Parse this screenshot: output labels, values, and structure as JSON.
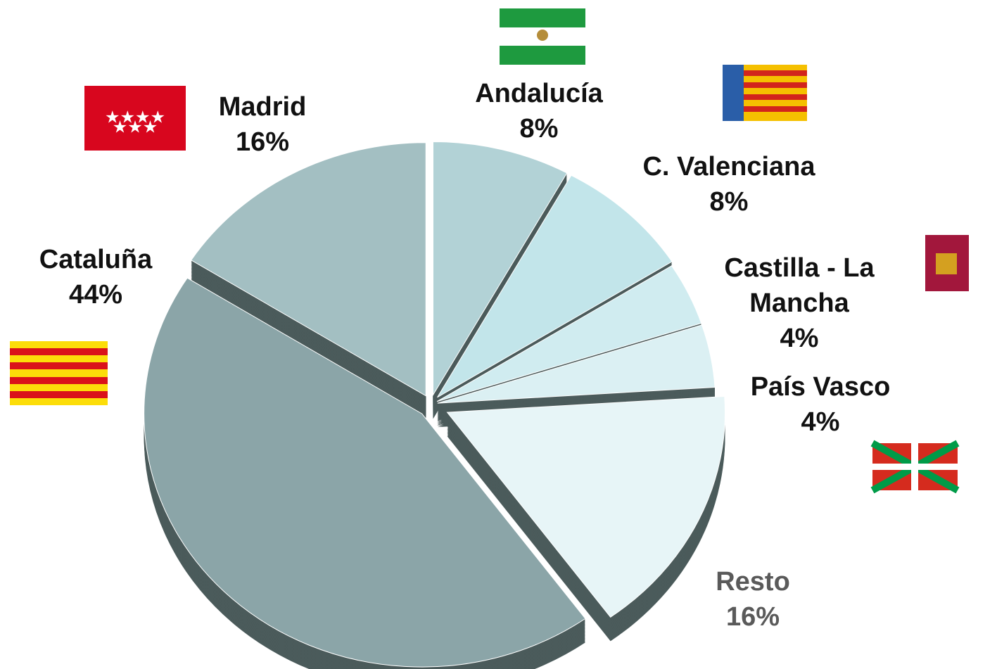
{
  "chart_data": {
    "type": "pie",
    "categories": [
      "Andalucía",
      "C. Valenciana",
      "Castilla - La Mancha",
      "País Vasco",
      "Resto",
      "Cataluña",
      "Madrid"
    ],
    "values": [
      8,
      8,
      4,
      4,
      16,
      44,
      16
    ],
    "value_labels": [
      "8%",
      "8%",
      "4%",
      "4%",
      "16%",
      "44%",
      "16%"
    ],
    "colors": [
      "#b2d2d6",
      "#c2e5ea",
      "#d0ecf0",
      "#dbf0f3",
      "#e7f5f7",
      "#8ba5a8",
      "#a3bfc2"
    ]
  }
}
